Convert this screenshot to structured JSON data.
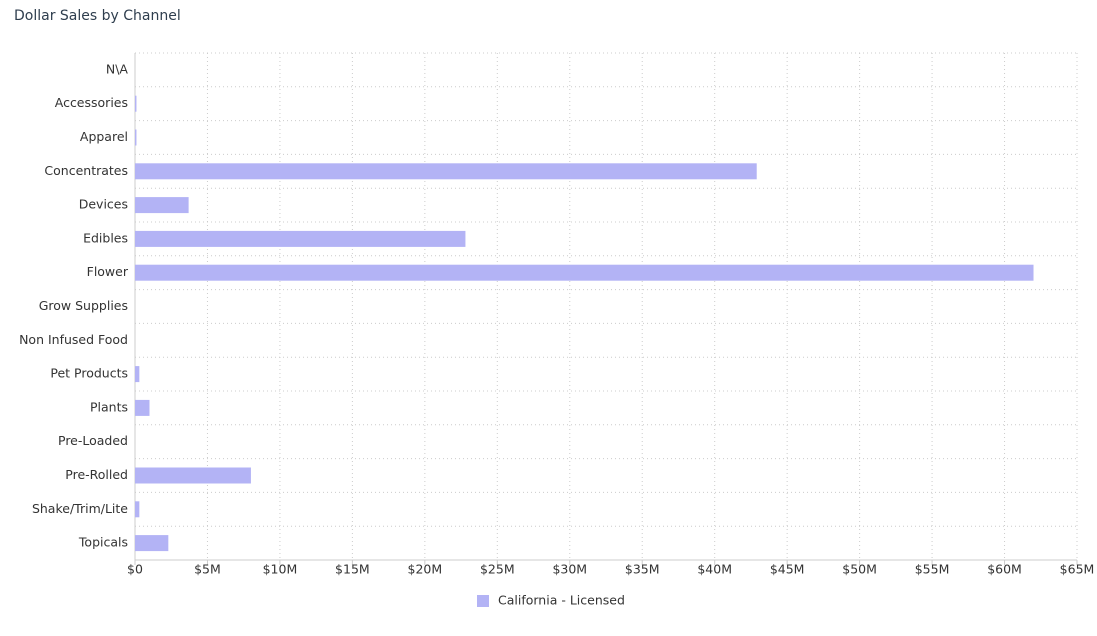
{
  "chart_data": {
    "type": "bar",
    "orientation": "horizontal",
    "title": "Dollar Sales by Channel",
    "categories": [
      "N\\A",
      "Accessories",
      "Apparel",
      "Concentrates",
      "Devices",
      "Edibles",
      "Flower",
      "Grow Supplies",
      "Non Infused Food",
      "Pet Products",
      "Plants",
      "Pre-Loaded",
      "Pre-Rolled",
      "Shake/Trim/Lite",
      "Topicals"
    ],
    "series": [
      {
        "name": "California - Licensed",
        "color": "#b3b3f5",
        "values": [
          0,
          100000,
          100000,
          42900000,
          3700000,
          22800000,
          62000000,
          0,
          0,
          300000,
          1000000,
          0,
          8000000,
          300000,
          2300000
        ]
      }
    ],
    "xlim": [
      0,
      65000000
    ],
    "xticks": [
      {
        "value": 0,
        "label": "$0"
      },
      {
        "value": 5000000,
        "label": "$5M"
      },
      {
        "value": 10000000,
        "label": "$10M"
      },
      {
        "value": 15000000,
        "label": "$15M"
      },
      {
        "value": 20000000,
        "label": "$20M"
      },
      {
        "value": 25000000,
        "label": "$25M"
      },
      {
        "value": 30000000,
        "label": "$30M"
      },
      {
        "value": 35000000,
        "label": "$35M"
      },
      {
        "value": 40000000,
        "label": "$40M"
      },
      {
        "value": 45000000,
        "label": "$45M"
      },
      {
        "value": 50000000,
        "label": "$50M"
      },
      {
        "value": 55000000,
        "label": "$55M"
      },
      {
        "value": 60000000,
        "label": "$60M"
      },
      {
        "value": 65000000,
        "label": "$65M"
      }
    ],
    "grid": true,
    "legend": "bottom"
  }
}
